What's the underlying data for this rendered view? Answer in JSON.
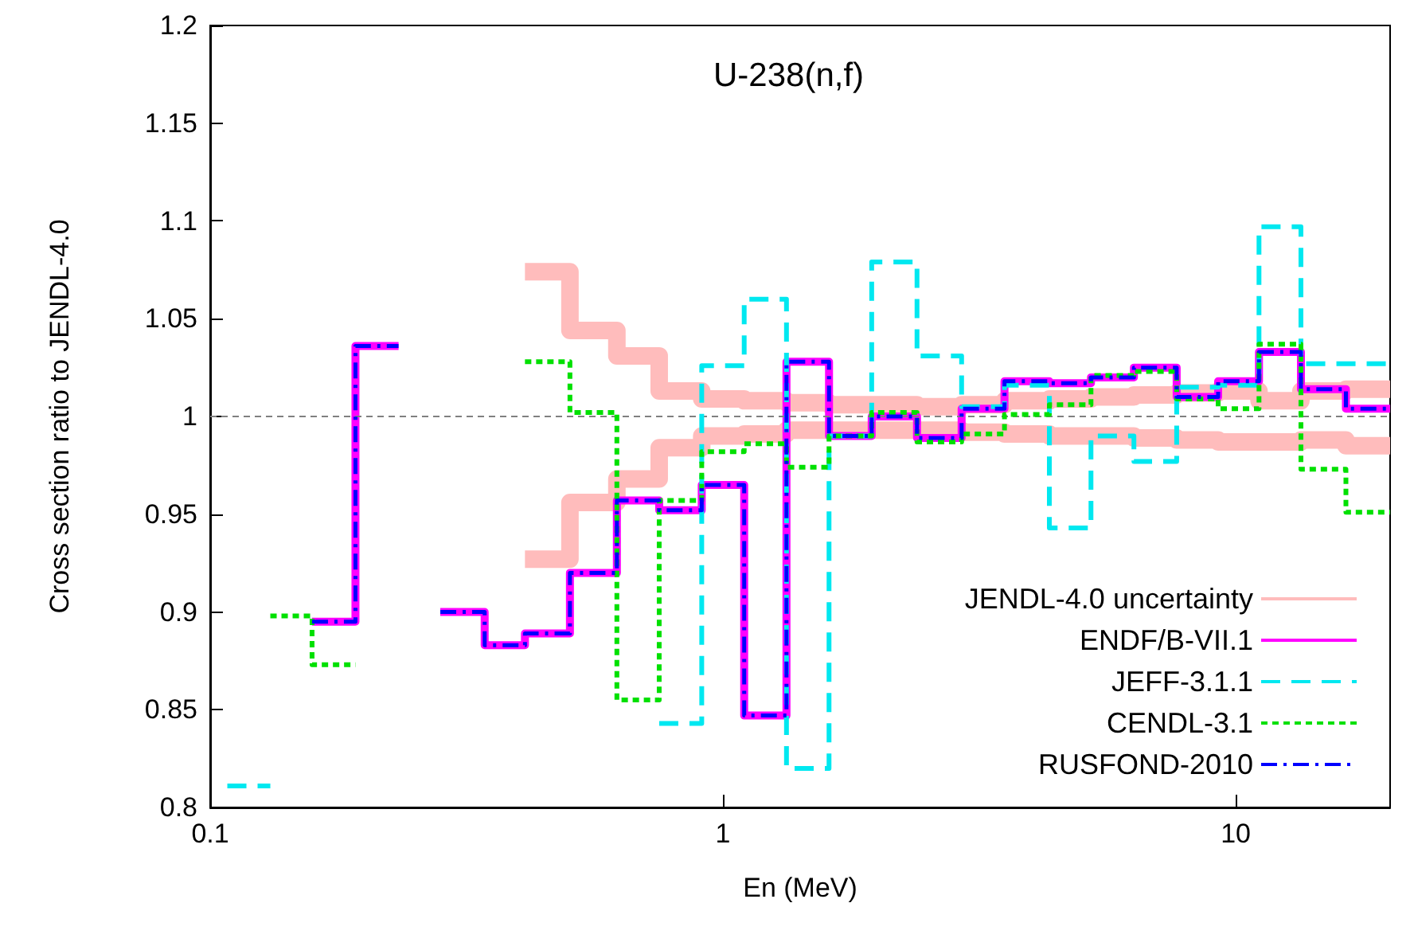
{
  "chart_data": {
    "type": "step",
    "title": "U-238(n,f)",
    "xlabel": "En (MeV)",
    "ylabel": "Cross section ratio to JENDL-4.0",
    "log": "x",
    "xlim": [
      0.1,
      20
    ],
    "xticks": [
      0.1,
      1,
      10
    ],
    "ylim": [
      0.8,
      1.2
    ],
    "yticks": [
      0.8,
      0.85,
      0.9,
      0.95,
      1,
      1.05,
      1.1,
      1.15,
      1.2
    ],
    "grid": false,
    "legend": "bottom right",
    "marker": "none",
    "ref_lines": [
      {
        "axis": "y",
        "value": 1,
        "color": "#808080",
        "line_style": "dotted"
      }
    ],
    "series": [
      {
        "name": "JENDL-4.0 uncertainty",
        "color": "#ffbcbc",
        "line_style": "solid",
        "x": [
          0.411,
          0.503,
          0.621,
          0.751,
          0.909,
          1.1,
          1.33,
          1.61,
          1.95,
          2.39,
          2.92,
          3.54,
          4.33,
          5.22,
          6.33,
          7.67,
          9.24,
          11.1,
          13.4,
          16.4,
          20
        ],
        "values": [
          1.074,
          1.044,
          1.031,
          1.013,
          1.009,
          1.008,
          1.007,
          1.006,
          1.006,
          1.005,
          1.006,
          1.008,
          1.009,
          1.01,
          1.011,
          1.012,
          1.013,
          1.008,
          1.013,
          1.014,
          1.014
        ]
      },
      {
        "color": "#ffbcbc",
        "line_style": "solid",
        "x": [
          0.411,
          0.503,
          0.621,
          0.751,
          0.909,
          1.1,
          1.33,
          1.61,
          1.95,
          2.39,
          2.92,
          3.54,
          4.33,
          5.22,
          6.33,
          7.67,
          9.24,
          11.1,
          13.4,
          16.4,
          20
        ],
        "values": [
          0.927,
          0.956,
          0.968,
          0.984,
          0.99,
          0.991,
          0.993,
          0.993,
          0.993,
          0.993,
          0.992,
          0.991,
          0.99,
          0.99,
          0.989,
          0.988,
          0.987,
          0.987,
          0.988,
          0.985,
          0.985
        ]
      },
      {
        "name": "ENDF/B-VII.1",
        "color": "#ff00ff",
        "line_style": "solid",
        "x": [
          0.158,
          0.192,
          0.233,
          0.281,
          0.343,
          0.411,
          0.503,
          0.621,
          0.751,
          0.909,
          1.1,
          1.33,
          1.61,
          1.95,
          2.39,
          2.92,
          3.54,
          4.33,
          5.22,
          6.33,
          7.67,
          9.24,
          11.1,
          13.4,
          16.4,
          20
        ],
        "values": [
          0.895,
          1.036,
          null,
          0.9,
          0.883,
          0.889,
          0.92,
          0.957,
          0.952,
          0.965,
          0.847,
          1.028,
          0.99,
          1.0,
          0.989,
          1.004,
          1.018,
          1.017,
          1.02,
          1.025,
          1.01,
          1.018,
          1.033,
          1.014,
          1.004,
          1.004
        ]
      },
      {
        "name": "JEFF-3.1.1",
        "color": "#00e8f0",
        "line_style": "dashed",
        "x": [
          0.108,
          0.131,
          0.751,
          0.909,
          1.1,
          1.33,
          1.61,
          1.95,
          2.39,
          2.92,
          3.54,
          4.33,
          5.22,
          6.33,
          7.67,
          9.24,
          11.1,
          13.4,
          20
        ],
        "values": [
          0.811,
          null,
          0.843,
          1.026,
          1.06,
          0.82,
          0.99,
          1.079,
          1.031,
          1.005,
          1.016,
          0.943,
          0.99,
          0.977,
          1.015,
          1.016,
          1.097,
          1.027,
          1.027
        ]
      },
      {
        "name": "CENDL-3.1",
        "color": "#00e000",
        "line_style": "dotted",
        "x": [
          0.131,
          0.158,
          0.192,
          0.411,
          0.503,
          0.621,
          0.751,
          0.909,
          1.1,
          1.33,
          1.61,
          1.95,
          2.39,
          2.92,
          3.54,
          4.33,
          5.22,
          6.33,
          7.67,
          9.24,
          11.1,
          13.4,
          16.4,
          20
        ],
        "values": [
          0.898,
          0.873,
          null,
          1.028,
          1.002,
          0.855,
          0.957,
          0.982,
          0.986,
          0.974,
          0.99,
          1.002,
          0.987,
          0.991,
          1.001,
          1.006,
          1.021,
          1.023,
          1.009,
          1.004,
          1.037,
          0.973,
          0.951,
          0.951
        ]
      },
      {
        "name": "RUSFOND-2010",
        "color": "#0000ff",
        "line_style": "dashed",
        "x": [
          0.158,
          0.192,
          0.233,
          0.281,
          0.343,
          0.411,
          0.503,
          0.621,
          0.751,
          0.909,
          1.1,
          1.33,
          1.61,
          1.95,
          2.39,
          2.92,
          3.54,
          4.33,
          5.22,
          6.33,
          7.67,
          9.24,
          11.1,
          13.4,
          16.4,
          20
        ],
        "values": [
          0.895,
          1.036,
          null,
          0.9,
          0.883,
          0.889,
          0.92,
          0.957,
          0.952,
          0.965,
          0.847,
          1.028,
          0.99,
          1.0,
          0.989,
          1.004,
          1.018,
          1.017,
          1.02,
          1.025,
          1.01,
          1.018,
          1.033,
          1.014,
          1.004,
          1.004
        ]
      }
    ]
  }
}
